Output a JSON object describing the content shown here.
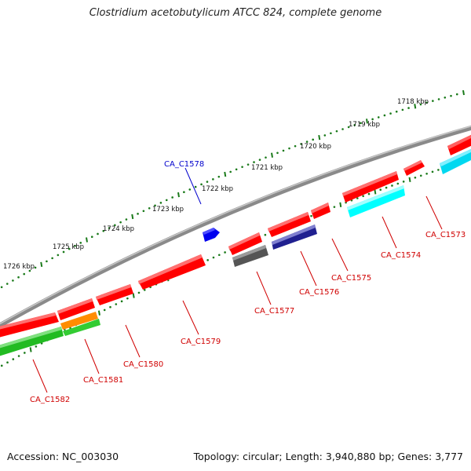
{
  "title": "Clostridium acetobutylicum ATCC 824, complete genome",
  "footer": {
    "accession": "Accession: NC_003030",
    "summary": "Topology: circular; Length: 3,940,880 bp; Genes: 3,777"
  },
  "kbp_labels": [
    "1718 kbp",
    "1719 kbp",
    "1720 kbp",
    "1721 kbp",
    "1722 kbp",
    "1723 kbp",
    "1724 kbp",
    "1725 kbp",
    "1726 kbp"
  ],
  "genes": [
    {
      "name": "CA_C1573",
      "color": "#d00000",
      "strand": "reverse"
    },
    {
      "name": "CA_C1574",
      "color": "#d00000",
      "strand": "reverse"
    },
    {
      "name": "CA_C1575",
      "color": "#d00000",
      "strand": "reverse"
    },
    {
      "name": "CA_C1576",
      "color": "#d00000",
      "strand": "reverse"
    },
    {
      "name": "CA_C1577",
      "color": "#d00000",
      "strand": "reverse"
    },
    {
      "name": "CA_C1578",
      "color": "#0000cc",
      "strand": "forward"
    },
    {
      "name": "CA_C1579",
      "color": "#d00000",
      "strand": "reverse"
    },
    {
      "name": "CA_C1580",
      "color": "#d00000",
      "strand": "reverse"
    },
    {
      "name": "CA_C1581",
      "color": "#d00000",
      "strand": "reverse"
    },
    {
      "name": "CA_C1582",
      "color": "#d00000",
      "strand": "reverse"
    }
  ],
  "colors": {
    "cds": "#ff0000",
    "backbone": "#808080",
    "ticks": "#1a7a1a",
    "blue_gene": "#0000ff",
    "cyan_feature": "#00e5ff",
    "gray_feature": "#606060",
    "navy_feature": "#000080",
    "green_feature": "#22bb22",
    "orange_feature": "#ff8c00"
  }
}
